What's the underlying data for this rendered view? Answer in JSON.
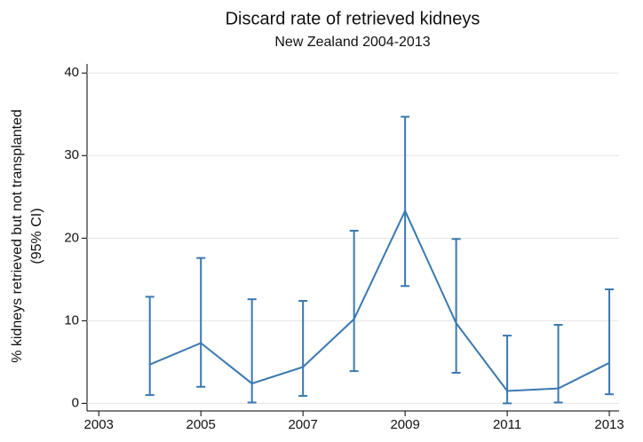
{
  "chart_data": {
    "type": "line",
    "title": "Discard rate of retrieved kidneys",
    "subtitle": "New Zealand 2004-2013",
    "y_label": [
      "% kidneys retrieved but not transplanted",
      "(95% CI)"
    ],
    "x": [
      2004,
      2005,
      2006,
      2007,
      2008,
      2009,
      2010,
      2011,
      2012,
      2013
    ],
    "series": [
      {
        "color": "#3a78b0",
        "values": [
          4.7,
          7.3,
          2.4,
          4.4,
          10.2,
          23.3,
          9.7,
          1.5,
          1.8,
          4.9
        ],
        "lower": [
          1.0,
          2.0,
          0.1,
          0.9,
          3.9,
          14.2,
          3.7,
          0.0,
          0.1,
          1.1
        ],
        "upper": [
          12.9,
          17.6,
          12.6,
          12.4,
          20.9,
          34.7,
          19.9,
          8.2,
          9.5,
          13.8
        ]
      }
    ],
    "xlim": [
      2002.77,
      2013.19
    ],
    "ylim": [
      -0.6,
      41.1
    ],
    "xticks": [
      2003,
      2005,
      2007,
      2009,
      2011,
      2013
    ],
    "yticks": [
      0,
      10,
      20,
      30,
      40
    ],
    "grid": true
  }
}
